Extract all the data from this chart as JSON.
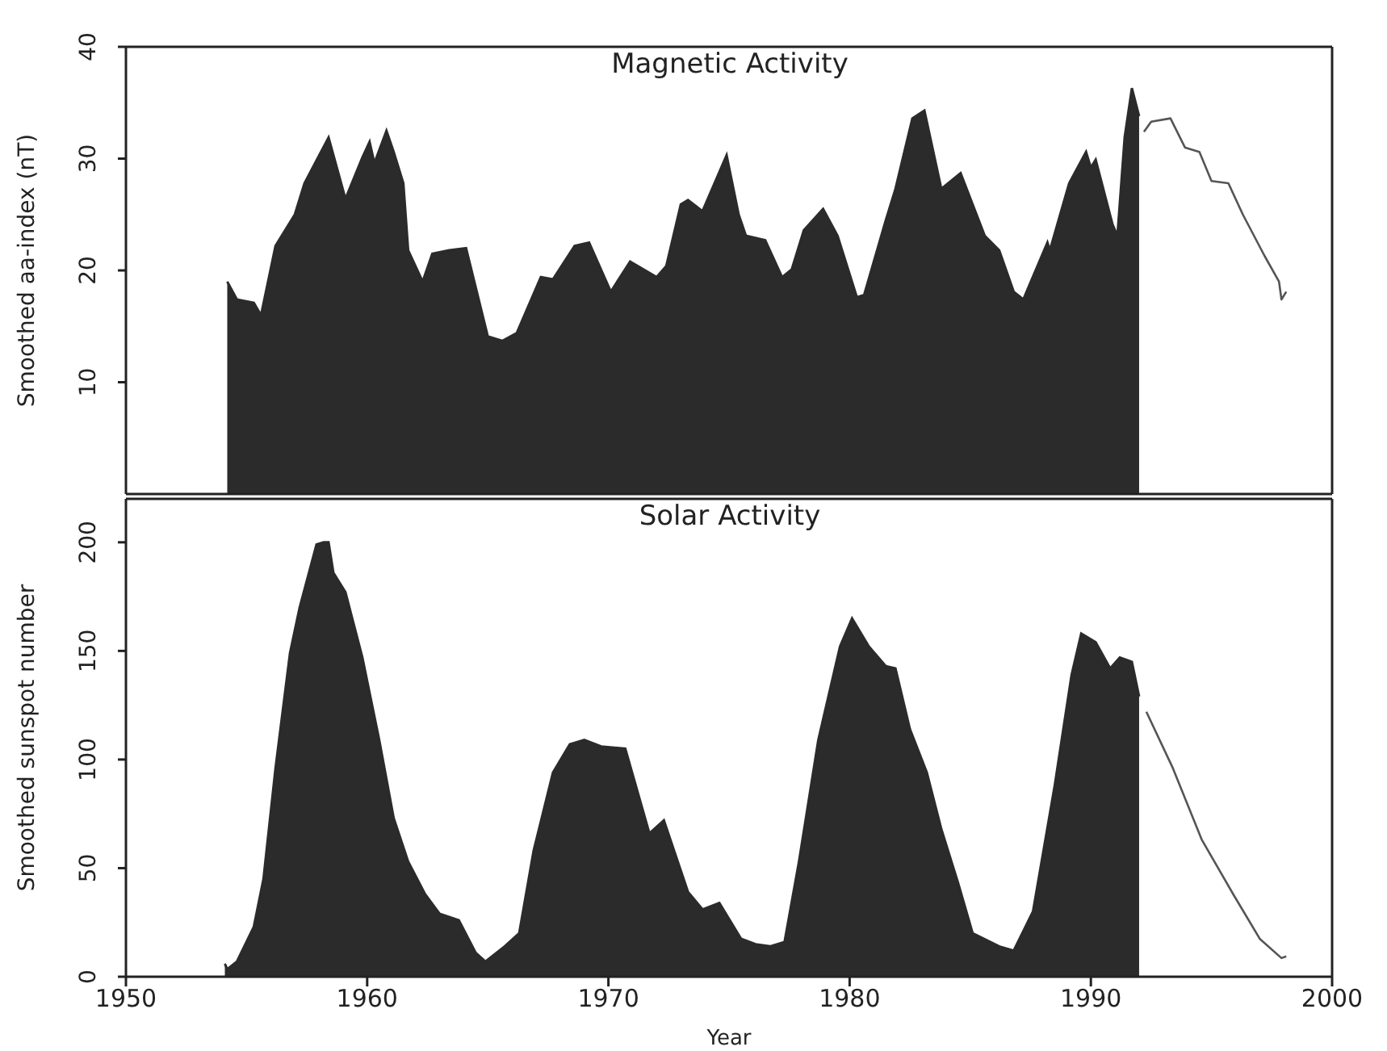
{
  "chart_data": [
    {
      "type": "area",
      "title": "Magnetic Activity",
      "ylabel": "Smoothed aa-index (nT)",
      "xlim": [
        1950,
        2000
      ],
      "xticks": [
        1950,
        1960,
        1970,
        1980,
        1990,
        2000
      ],
      "ylim": [
        0,
        40
      ],
      "yticks": [
        10,
        20,
        30,
        40
      ],
      "tick_labels": "y",
      "series": [
        {
          "type": "area",
          "color": "#2b2b2b",
          "x": [
            1954.2,
            1954.6,
            1955.3,
            1955.6,
            1956.2,
            1957.0,
            1957.4,
            1958.4,
            1959.1,
            1959.8,
            1960.1,
            1960.3,
            1960.8,
            1961.1,
            1961.5,
            1961.7,
            1962.3,
            1962.7,
            1963.4,
            1964.1,
            1965.0,
            1965.6,
            1966.2,
            1967.2,
            1967.7,
            1968.6,
            1969.2,
            1970.1,
            1970.9,
            1972.0,
            1972.4,
            1973.0,
            1973.3,
            1973.9,
            1974.9,
            1975.4,
            1975.7,
            1976.5,
            1977.2,
            1977.6,
            1978.1,
            1978.9,
            1979.5,
            1980.3,
            1980.6,
            1981.5,
            1981.9,
            1982.6,
            1983.1,
            1983.8,
            1984.6,
            1985.6,
            1986.2,
            1986.8,
            1987.2,
            1988.2,
            1988.3,
            1989.1,
            1989.8,
            1990.0,
            1990.2,
            1990.9,
            1991.1,
            1991.4,
            1991.7,
            1992.0
          ],
          "values": [
            19.0,
            17.4,
            17.1,
            16.0,
            22.2,
            25.0,
            27.8,
            31.9,
            26.4,
            30.1,
            31.5,
            29.6,
            32.5,
            30.6,
            27.8,
            21.8,
            19.0,
            21.5,
            21.8,
            22.0,
            14.1,
            13.7,
            14.4,
            19.4,
            19.2,
            22.2,
            22.5,
            18.1,
            20.8,
            19.4,
            20.4,
            25.9,
            26.3,
            25.3,
            30.3,
            25.0,
            23.1,
            22.7,
            19.4,
            20.1,
            23.6,
            25.5,
            23.1,
            17.6,
            17.8,
            24.5,
            27.3,
            33.6,
            34.3,
            27.3,
            28.7,
            23.1,
            21.8,
            18.1,
            17.4,
            22.5,
            21.8,
            27.8,
            30.6,
            29.2,
            29.9,
            24.1,
            23.1,
            31.9,
            36.3,
            33.8
          ]
        },
        {
          "type": "line",
          "color": "#555555",
          "x": [
            1992.2,
            1992.5,
            1993.3,
            1993.9,
            1994.5,
            1995.0,
            1995.7,
            1996.3,
            1997.2,
            1997.8,
            1997.9,
            1998.1
          ],
          "values": [
            32.4,
            33.3,
            33.6,
            31.0,
            30.6,
            28.0,
            27.8,
            25.0,
            21.3,
            19.0,
            17.4,
            18.1
          ]
        }
      ]
    },
    {
      "type": "area",
      "title": "Solar Activity",
      "ylabel": "Smoothed sunspot number",
      "xlabel": "Year",
      "xlim": [
        1950,
        2000
      ],
      "xticks": [
        1950,
        1960,
        1970,
        1980,
        1990,
        2000
      ],
      "ylim": [
        0,
        220
      ],
      "yticks": [
        0,
        50,
        100,
        150,
        200
      ],
      "series": [
        {
          "type": "area",
          "color": "#2b2b2b",
          "x": [
            1954.1,
            1954.2,
            1954.6,
            1955.3,
            1955.7,
            1956.2,
            1956.8,
            1957.2,
            1957.9,
            1958.2,
            1958.4,
            1958.6,
            1959.1,
            1959.8,
            1960.5,
            1961.1,
            1961.7,
            1962.4,
            1963.0,
            1963.8,
            1964.5,
            1964.9,
            1965.7,
            1966.3,
            1966.9,
            1967.7,
            1968.4,
            1969.0,
            1969.7,
            1970.7,
            1971.7,
            1972.3,
            1973.3,
            1973.9,
            1974.6,
            1975.5,
            1976.1,
            1976.7,
            1977.3,
            1977.9,
            1978.7,
            1979.6,
            1980.1,
            1980.8,
            1981.5,
            1981.9,
            1982.5,
            1983.2,
            1983.8,
            1984.5,
            1985.1,
            1986.2,
            1986.8,
            1987.6,
            1988.5,
            1989.2,
            1989.6,
            1990.2,
            1990.8,
            1991.2,
            1991.7,
            1992.0
          ],
          "values": [
            6,
            3.5,
            7,
            23,
            45,
            96,
            149,
            170,
            199,
            200,
            200,
            186,
            177,
            147,
            109,
            73,
            53,
            38,
            29,
            26,
            11,
            7,
            14,
            20,
            58,
            94,
            107,
            109,
            106,
            105,
            66,
            72,
            39,
            31,
            34,
            17.5,
            15,
            14,
            16,
            53,
            109,
            152,
            165,
            152,
            143,
            142,
            114,
            94,
            68,
            43,
            20,
            14,
            12,
            30,
            88,
            139,
            158,
            154,
            142,
            147,
            145,
            129
          ]
        },
        {
          "type": "line",
          "color": "#555555",
          "x": [
            1992.3,
            1993.4,
            1994.6,
            1995.9,
            1997.0,
            1997.9,
            1998.1
          ],
          "values": [
            122,
            96,
            63,
            38,
            17.5,
            8.6,
            9.4
          ]
        }
      ]
    }
  ]
}
